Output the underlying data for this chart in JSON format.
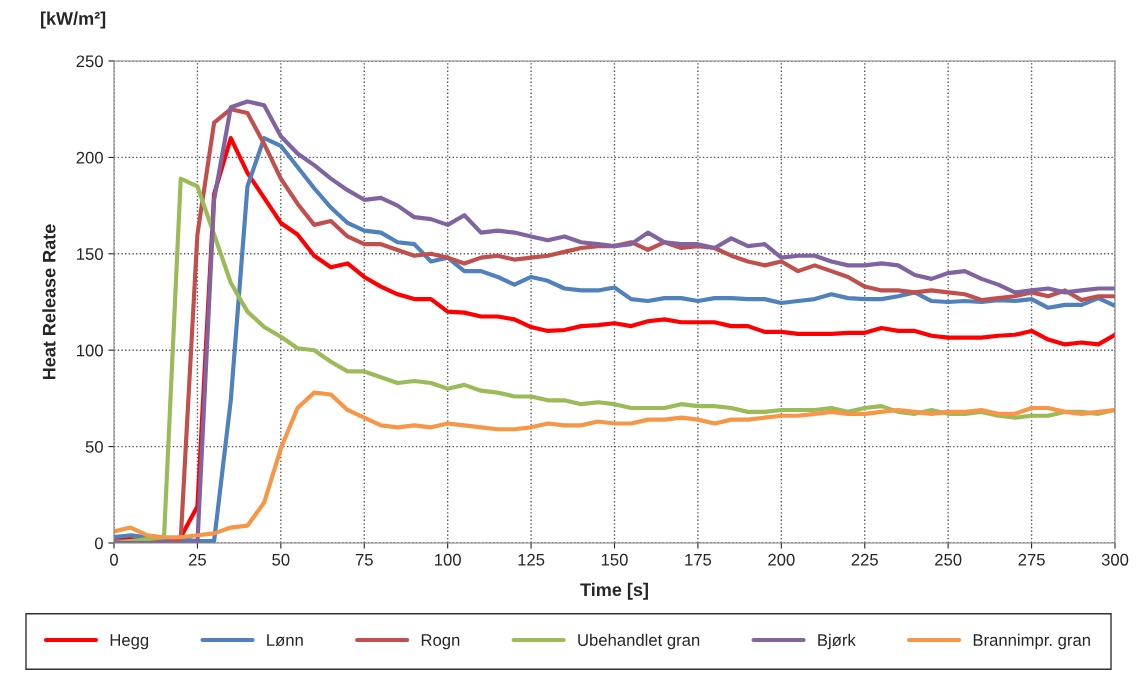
{
  "chart_data": {
    "type": "line",
    "xlabel": "Time [s]",
    "ylabel": "Heat Release Rate",
    "annotations": [
      "[kW/m²]"
    ],
    "x": [
      0,
      5,
      10,
      15,
      20,
      25,
      30,
      35,
      40,
      45,
      50,
      55,
      60,
      65,
      70,
      75,
      80,
      85,
      90,
      95,
      100,
      105,
      110,
      115,
      120,
      125,
      130,
      135,
      140,
      145,
      150,
      155,
      160,
      165,
      170,
      175,
      180,
      185,
      190,
      195,
      200,
      205,
      210,
      215,
      220,
      225,
      230,
      235,
      240,
      245,
      250,
      255,
      260,
      265,
      270,
      275,
      280,
      285,
      290,
      295,
      300
    ],
    "xlim": [
      0,
      300
    ],
    "xticks": [
      0,
      25,
      50,
      75,
      100,
      125,
      150,
      175,
      200,
      225,
      250,
      275,
      300
    ],
    "ylim": [
      0,
      250
    ],
    "yticks": [
      0,
      50,
      100,
      150,
      200,
      250
    ],
    "grid": true,
    "legend": "bottom",
    "series": [
      {
        "name": "Hegg",
        "color": "#ff0000",
        "values": [
          2,
          2,
          1,
          1,
          3,
          19,
          181,
          210,
          192,
          179,
          166,
          160,
          149,
          143,
          145,
          138,
          133,
          129,
          126.5,
          126.5,
          120,
          119.5,
          117.5,
          117.5,
          116,
          112,
          110,
          110.5,
          112.5,
          113,
          114,
          112.5,
          115,
          116,
          114.5,
          114.5,
          114.5,
          112.5,
          112.5,
          109.5,
          109.5,
          108.5,
          108.5,
          108.5,
          109,
          109,
          111.5,
          110,
          110,
          107.5,
          106.5,
          106.5,
          106.5,
          107.5,
          108,
          110,
          105.5,
          103,
          104,
          103,
          108
        ]
      },
      {
        "name": "Lønn",
        "color": "#4f81bd",
        "values": [
          3,
          4,
          3,
          2,
          2,
          1,
          1,
          74,
          185,
          210,
          206,
          195,
          184,
          174,
          166,
          162,
          161,
          156,
          155,
          146,
          148,
          141,
          141,
          138,
          134,
          138,
          136,
          132,
          131,
          131,
          132.5,
          126.5,
          125.5,
          127,
          127,
          125.5,
          127,
          127,
          126.5,
          126.5,
          124.5,
          125.5,
          126.5,
          129,
          127,
          126.5,
          126.5,
          128,
          130,
          125.5,
          125,
          125.5,
          125,
          126,
          125.5,
          126.5,
          122,
          123.5,
          123.5,
          127,
          123
        ]
      },
      {
        "name": "Rogn",
        "color": "#c0504d",
        "values": [
          1,
          1,
          1,
          0,
          2,
          160,
          218,
          225,
          223,
          207,
          189,
          176,
          165,
          167,
          159,
          155,
          155,
          152,
          149,
          150,
          148,
          145,
          148,
          149,
          147,
          148,
          149,
          151,
          153,
          154,
          154,
          156,
          152,
          156,
          153,
          154,
          153,
          149,
          146,
          144,
          146,
          141,
          144,
          141,
          138,
          133,
          131,
          131,
          130,
          131,
          130,
          129,
          126,
          127,
          128,
          130,
          128,
          131,
          126,
          128,
          128
        ]
      },
      {
        "name": "Ubehandlet gran",
        "color": "#9bbb59",
        "values": [
          0,
          1,
          2,
          3,
          189,
          185,
          160,
          135,
          120,
          112,
          107,
          101,
          100,
          94,
          89,
          89,
          86,
          83,
          84,
          83,
          80,
          82,
          79,
          78,
          76,
          76,
          74,
          74,
          72,
          73,
          72,
          70,
          70,
          70,
          72,
          71,
          71,
          70,
          68,
          68,
          69,
          69,
          69,
          70,
          68,
          70,
          71,
          68,
          67,
          69,
          67,
          67,
          68,
          66,
          65,
          66,
          66,
          68,
          68,
          67,
          69
        ]
      },
      {
        "name": "Bjørk",
        "color": "#8064a2",
        "values": [
          0,
          0,
          0,
          0,
          0,
          0,
          178,
          226,
          229,
          227,
          211,
          202,
          196,
          189,
          183,
          178,
          179,
          175,
          169,
          168,
          165,
          170,
          161,
          162,
          161,
          159,
          157,
          159,
          156,
          155,
          154,
          155,
          161,
          156,
          155,
          155,
          153,
          158,
          154,
          155,
          148,
          149,
          149,
          146,
          144,
          144,
          145,
          144,
          139,
          137,
          140,
          141,
          137,
          134,
          130,
          131,
          132,
          130,
          131,
          132,
          132
        ]
      },
      {
        "name": "Brannimpr. gran",
        "color": "#f79646",
        "values": [
          6,
          8,
          4,
          3,
          3,
          4,
          5,
          8,
          9,
          21,
          49,
          70,
          78,
          77,
          69,
          65,
          61,
          60,
          61,
          60,
          62,
          61,
          60,
          59,
          59,
          60,
          62,
          61,
          61,
          63,
          62,
          62,
          64,
          64,
          65,
          64,
          62,
          64,
          64,
          65,
          66,
          66,
          67,
          68,
          67,
          67,
          68,
          69,
          68,
          67,
          68,
          68,
          69,
          67,
          67,
          70,
          70,
          68,
          67,
          68,
          69
        ]
      }
    ]
  }
}
